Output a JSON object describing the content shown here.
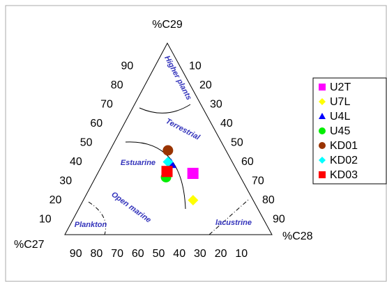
{
  "chart_data": {
    "type": "ternary",
    "axes": [
      {
        "name": "%C27",
        "ticks": [
          90,
          80,
          70,
          60,
          50,
          40,
          30,
          20,
          10
        ]
      },
      {
        "name": "%C28",
        "ticks": [
          10,
          20,
          30,
          40,
          50,
          60,
          70,
          80,
          90
        ]
      },
      {
        "name": "%C29",
        "ticks": [
          90,
          80,
          70,
          60,
          50,
          40,
          30,
          20,
          10
        ]
      }
    ],
    "regions": [
      "Higher plants",
      "Terrestrial",
      "Estuarine",
      "Open marine",
      "Plankton",
      "lacustrine"
    ],
    "series": [
      {
        "name": "U2T",
        "color": "#ff00ff",
        "marker": "square",
        "values": [
          22,
          46,
          32
        ]
      },
      {
        "name": "U7L",
        "color": "#ffff00",
        "marker": "diamond",
        "values": [
          29,
          53,
          18
        ]
      },
      {
        "name": "U4L",
        "color": "#0000ff",
        "marker": "triangle",
        "values": [
          30,
          33,
          37
        ]
      },
      {
        "name": "U45",
        "color": "#00ee00",
        "marker": "circle",
        "values": [
          36,
          34,
          30
        ]
      },
      {
        "name": "KD01",
        "color": "#993300",
        "marker": "circle",
        "values": [
          28,
          28,
          44
        ]
      },
      {
        "name": "KD02",
        "color": "#00ffff",
        "marker": "diamond",
        "values": [
          31,
          31,
          38
        ]
      },
      {
        "name": "KD03",
        "color": "#ff0000",
        "marker": "square",
        "values": [
          34,
          33,
          33
        ]
      }
    ]
  }
}
